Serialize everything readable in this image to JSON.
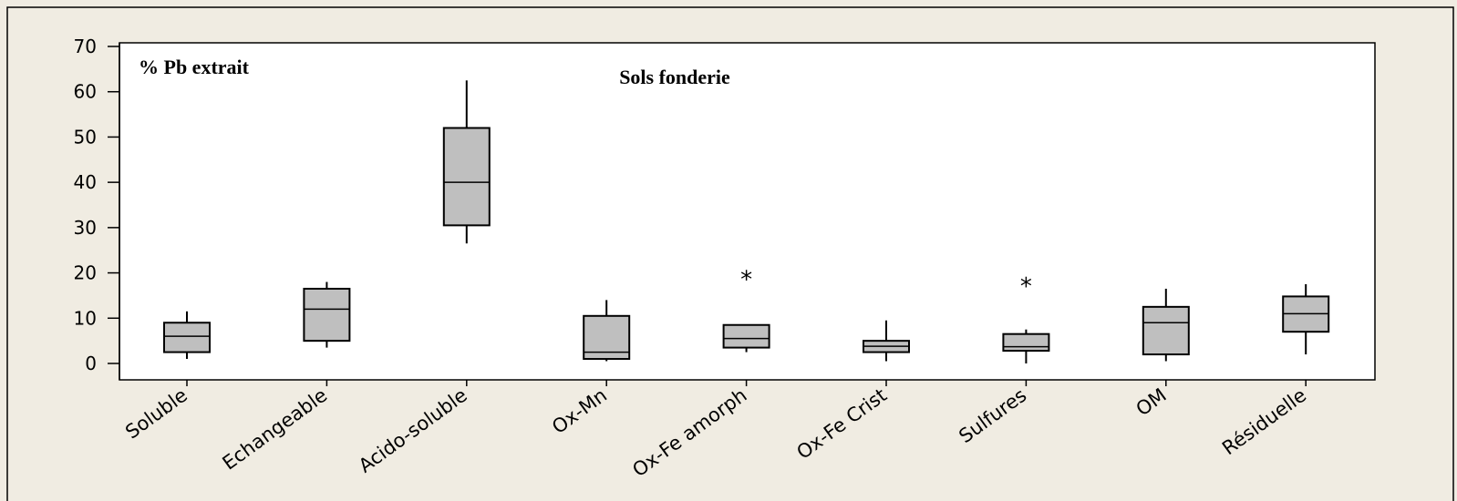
{
  "chart_data": {
    "type": "boxplot",
    "title": "Sols fonderie",
    "ylabel": "% Pb extrait",
    "xlabel": "",
    "ylim": [
      0,
      70
    ],
    "yticks": [
      0,
      10,
      20,
      30,
      40,
      50,
      60,
      70
    ],
    "grid": false,
    "categories": [
      "Soluble",
      "Echangeable",
      "Acido-soluble",
      "Ox-Mn",
      "Ox-Fe amorph",
      "Ox-Fe Crist",
      "Sulfures",
      "OM",
      "Résiduelle"
    ],
    "boxes": [
      {
        "min": 1.0,
        "q1": 2.5,
        "median": 6.0,
        "q3": 9.0,
        "max": 11.5,
        "outliers": []
      },
      {
        "min": 3.5,
        "q1": 5.0,
        "median": 12.0,
        "q3": 16.5,
        "max": 18.0,
        "outliers": []
      },
      {
        "min": 26.5,
        "q1": 30.5,
        "median": 40.0,
        "q3": 52.0,
        "max": 62.5,
        "outliers": []
      },
      {
        "min": 0.5,
        "q1": 1.0,
        "median": 2.5,
        "q3": 10.5,
        "max": 14.0,
        "outliers": []
      },
      {
        "min": 2.5,
        "q1": 3.5,
        "median": 5.5,
        "q3": 8.5,
        "max": 8.5,
        "outliers": [
          19.0
        ]
      },
      {
        "min": 0.5,
        "q1": 2.5,
        "median": 3.8,
        "q3": 5.0,
        "max": 9.5,
        "outliers": []
      },
      {
        "min": 0.0,
        "q1": 2.8,
        "median": 3.7,
        "q3": 6.5,
        "max": 7.5,
        "outliers": [
          17.5
        ]
      },
      {
        "min": 0.5,
        "q1": 2.0,
        "median": 9.0,
        "q3": 12.5,
        "max": 16.5,
        "outliers": []
      },
      {
        "min": 2.0,
        "q1": 7.0,
        "median": 11.0,
        "q3": 14.8,
        "max": 17.5,
        "outliers": []
      }
    ]
  },
  "colors": {
    "background": "#f0ece2",
    "plot_area": "#ffffff",
    "box_fill": "#bfbfbf",
    "stroke": "#000000"
  }
}
